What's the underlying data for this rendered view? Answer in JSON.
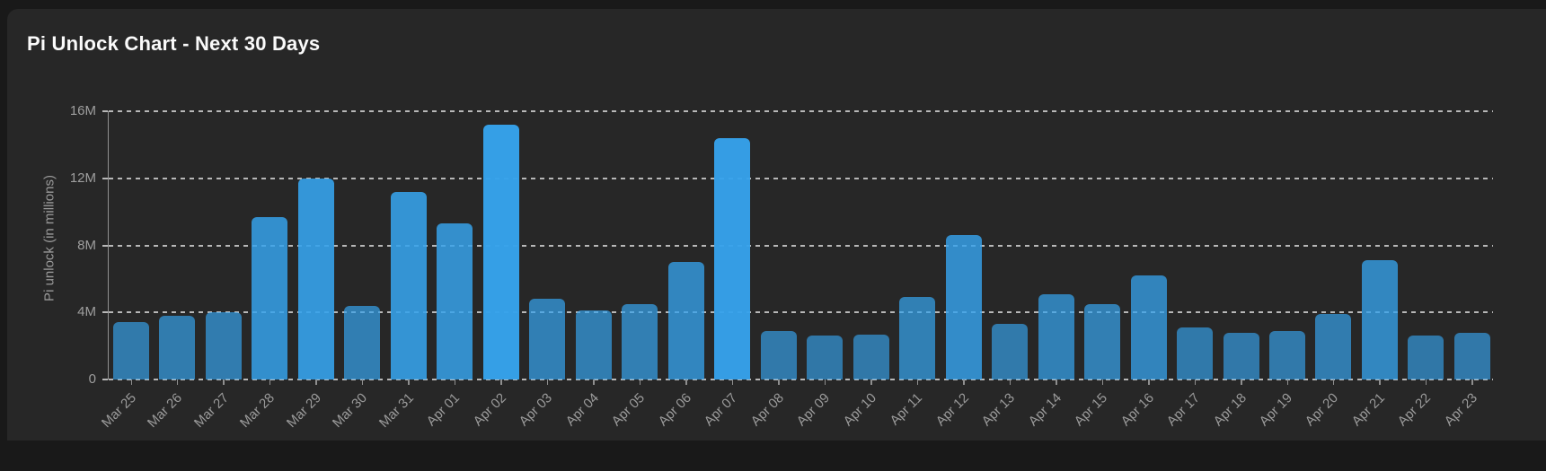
{
  "page": {
    "title": "Pi Unlock Chart - Next 30 Days"
  },
  "colors": {
    "outer_background": "#191919",
    "panel_background": "#272727",
    "title_text": "#fafafa",
    "axis_text": "#9b9b9b",
    "gridline": "#d2d2d2",
    "bar_base": "#36a2eb"
  },
  "chart_data": {
    "type": "bar",
    "title": "Pi Unlock Chart - Next 30 Days",
    "xlabel": "",
    "ylabel": "Pi unlock (in millions)",
    "value_unit": "millions of Pi",
    "ylim": [
      0,
      16
    ],
    "ytick_values": [
      0,
      4,
      8,
      12,
      16
    ],
    "ytick_labels": [
      "0",
      "4M",
      "8M",
      "12M",
      "16M"
    ],
    "grid": "horizontal-dashed",
    "legend": "none",
    "categories": [
      "Mar 25",
      "Mar 26",
      "Mar 27",
      "Mar 28",
      "Mar 29",
      "Mar 30",
      "Mar 31",
      "Apr 01",
      "Apr 02",
      "Apr 03",
      "Apr 04",
      "Apr 05",
      "Apr 06",
      "Apr 07",
      "Apr 08",
      "Apr 09",
      "Apr 10",
      "Apr 11",
      "Apr 12",
      "Apr 13",
      "Apr 14",
      "Apr 15",
      "Apr 16",
      "Apr 17",
      "Apr 18",
      "Apr 19",
      "Apr 20",
      "Apr 21",
      "Apr 22",
      "Apr 23"
    ],
    "values": [
      3.4,
      3.8,
      4.0,
      9.7,
      12.0,
      4.4,
      11.2,
      9.3,
      15.2,
      4.8,
      4.1,
      4.5,
      7.0,
      14.4,
      2.9,
      2.6,
      2.7,
      4.9,
      8.6,
      3.3,
      5.1,
      4.5,
      6.2,
      3.1,
      2.8,
      2.9,
      3.9,
      7.1,
      2.6,
      2.8
    ],
    "bar_style": {
      "base_rgb": [
        54,
        162,
        235
      ],
      "alpha_min": 0.55,
      "alpha_span": 0.45,
      "alpha_exp": 0.8,
      "note": "bar opacity scales with value; taller bars render brighter blue over dark panel"
    }
  }
}
